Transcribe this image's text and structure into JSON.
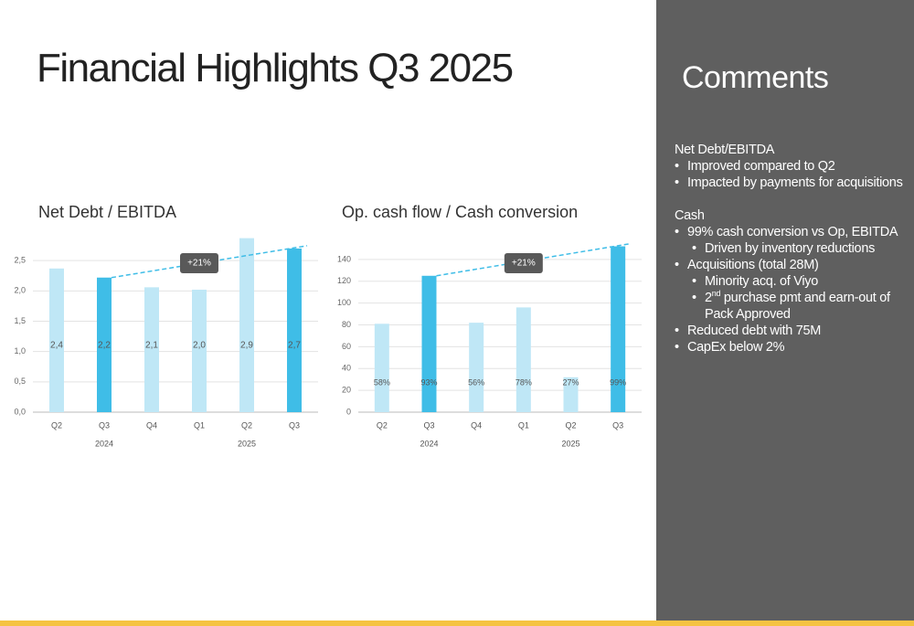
{
  "title": "Financial Highlights Q3 2025",
  "chart_data": [
    {
      "type": "bar",
      "title": "Net Debt / EBITDA",
      "categories": [
        "Q2",
        "Q3",
        "Q4",
        "Q1",
        "Q2",
        "Q3"
      ],
      "years": [
        "2024",
        "2025"
      ],
      "values": [
        2.37,
        2.22,
        2.06,
        2.02,
        2.87,
        2.7
      ],
      "value_labels": [
        "2,4",
        "2,2",
        "2,1",
        "2,0",
        "2,9",
        "2,7"
      ],
      "colors": [
        "#bfe7f6",
        "#3fbde7",
        "#bfe7f6",
        "#bfe7f6",
        "#bfe7f6",
        "#3fbde7"
      ],
      "ylim": [
        0,
        3
      ],
      "yticks": [
        {
          "value": 0,
          "label": "0,0"
        },
        {
          "value": 0.5,
          "label": "0,5"
        },
        {
          "value": 1,
          "label": "1,0"
        },
        {
          "value": 1.5,
          "label": "1,5"
        },
        {
          "value": 2,
          "label": "2,0"
        },
        {
          "value": 2.5,
          "label": "2,5"
        }
      ],
      "grid": true,
      "annotation": "+21%"
    },
    {
      "type": "bar",
      "title": "Op. cash flow / Cash conversion",
      "categories": [
        "Q2",
        "Q3",
        "Q4",
        "Q1",
        "Q2",
        "Q3"
      ],
      "years": [
        "2024",
        "2025"
      ],
      "values": [
        81,
        125,
        82,
        96,
        32,
        152
      ],
      "bar_labels": [
        "58%",
        "93%",
        "56%",
        "78%",
        "27%",
        "99%"
      ],
      "colors": [
        "#bfe7f6",
        "#3fbde7",
        "#bfe7f6",
        "#bfe7f6",
        "#bfe7f6",
        "#3fbde7"
      ],
      "ylim": [
        0,
        160
      ],
      "yticks": [
        0,
        20,
        40,
        60,
        80,
        100,
        120,
        140
      ],
      "grid": true,
      "annotation": "+21%"
    }
  ],
  "comments": {
    "title": "Comments",
    "sections": [
      {
        "heading": "Net Debt/EBITDA",
        "items": [
          {
            "level": 1,
            "text": "Improved compared to Q2"
          },
          {
            "level": 1,
            "text": "Impacted by payments for acquisitions"
          }
        ]
      },
      {
        "heading": "Cash",
        "items": [
          {
            "level": 1,
            "text": "99% cash conversion vs Op, EBITDA"
          },
          {
            "level": 2,
            "text": "Driven by inventory reductions"
          },
          {
            "level": 1,
            "text": "Acquisitions (total 28M)"
          },
          {
            "level": 2,
            "text": "Minority acq. of Viyo"
          },
          {
            "level": 2,
            "text": "2",
            "sup": "nd",
            "rest": " purchase pmt and earn-out of Pack Approved"
          },
          {
            "level": 1,
            "text": "Reduced debt with 75M"
          },
          {
            "level": 1,
            "text": "CapEx below 2%"
          }
        ]
      }
    ]
  }
}
